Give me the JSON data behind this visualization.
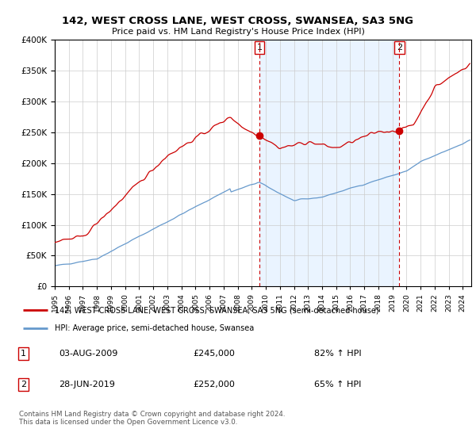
{
  "title": "142, WEST CROSS LANE, WEST CROSS, SWANSEA, SA3 5NG",
  "subtitle": "Price paid vs. HM Land Registry's House Price Index (HPI)",
  "legend_entry1": "142, WEST CROSS LANE, WEST CROSS, SWANSEA, SA3 5NG (semi-detached house)",
  "legend_entry2": "HPI: Average price, semi-detached house, Swansea",
  "annotation1_label": "1",
  "annotation1_date": "03-AUG-2009",
  "annotation1_price": "£245,000",
  "annotation1_pct": "82% ↑ HPI",
  "annotation2_label": "2",
  "annotation2_date": "28-JUN-2019",
  "annotation2_price": "£252,000",
  "annotation2_pct": "65% ↑ HPI",
  "footnote": "Contains HM Land Registry data © Crown copyright and database right 2024.\nThis data is licensed under the Open Government Licence v3.0.",
  "red_color": "#cc0000",
  "blue_color": "#6699cc",
  "shade_color": "#ddeeff",
  "ylim_min": 0,
  "ylim_max": 400000,
  "sale1_year": 2009.58,
  "sale1_value": 245000,
  "sale2_year": 2019.49,
  "sale2_value": 252000,
  "background_color": "#ffffff",
  "grid_color": "#cccccc"
}
